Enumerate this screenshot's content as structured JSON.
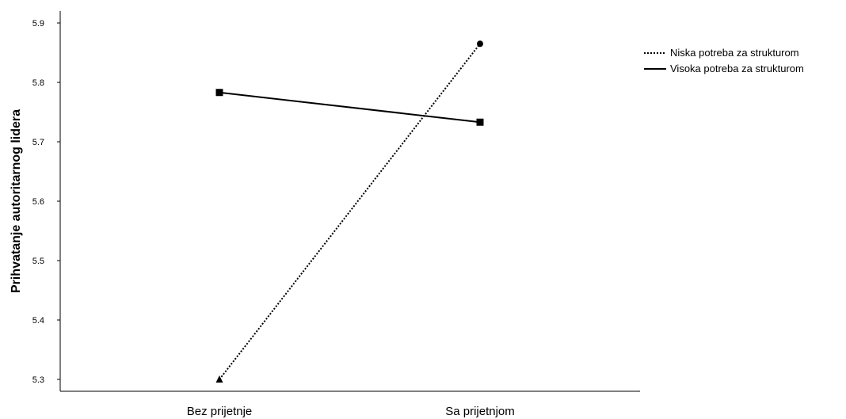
{
  "chart_data": {
    "type": "line",
    "categories": [
      "Bez prijetnje",
      "Sa prijetnjom"
    ],
    "series": [
      {
        "name": "Niska potreba za strukturom",
        "values": [
          5.3,
          5.865
        ],
        "line_style": "dotted",
        "marker": "triangle",
        "color": "#000000"
      },
      {
        "name": "Visoka potreba za strukturom",
        "values": [
          5.783,
          5.733
        ],
        "line_style": "solid",
        "marker": "square",
        "color": "#000000"
      }
    ],
    "title": "",
    "xlabel": "",
    "ylabel": "Prihvatanje autoritarnog lidera",
    "ylim": [
      5.28,
      5.92
    ],
    "yticks": [
      "5.3",
      "5.4",
      "5.5",
      "5.6",
      "5.7",
      "5.8",
      "5.9"
    ],
    "grid": false,
    "legend_position": "top-right"
  }
}
